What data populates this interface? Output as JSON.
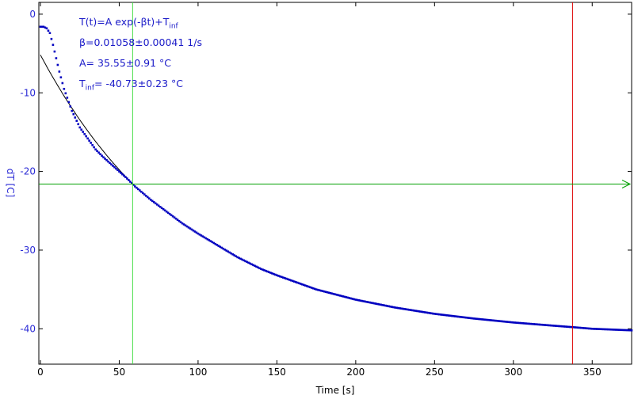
{
  "chart_data": {
    "type": "scatter",
    "xlabel": "Time [s]",
    "ylabel": "dT [C]",
    "xlim": [
      -1,
      375
    ],
    "ylim": [
      -44.5,
      1.5
    ],
    "xticks": [
      0,
      50,
      100,
      150,
      200,
      250,
      300,
      350
    ],
    "yticks": [
      0,
      -10,
      -20,
      -30,
      -40
    ],
    "series": [
      {
        "kind": "measured",
        "color": "#0000c0",
        "x": [
          0,
          2,
          4,
          6,
          8,
          10,
          12,
          15,
          20,
          25,
          30,
          35,
          40,
          45,
          50,
          55,
          58,
          60,
          70,
          80,
          90,
          100,
          110,
          125,
          140,
          150,
          175,
          200,
          225,
          250,
          275,
          300,
          325,
          338,
          350,
          375
        ],
        "y": [
          -1.6,
          -1.6,
          -1.8,
          -2.4,
          -3.9,
          -5.6,
          -7.3,
          -9.5,
          -12.3,
          -14.4,
          -15.8,
          -17.2,
          -18.2,
          -19.1,
          -20.0,
          -20.9,
          -21.5,
          -21.9,
          -23.6,
          -25.1,
          -26.6,
          -27.9,
          -29.1,
          -30.9,
          -32.4,
          -33.2,
          -35.0,
          -36.3,
          -37.3,
          -38.1,
          -38.7,
          -39.2,
          -39.6,
          -39.8,
          -40.0,
          -40.2
        ]
      },
      {
        "kind": "fit",
        "color": "#000000",
        "model": "T(t)=A exp(-βt)+T_inf",
        "params": {
          "A": 35.55,
          "beta": 0.01058,
          "T_inf": -40.73
        },
        "x_range": [
          0,
          58
        ]
      }
    ],
    "markers": {
      "vline_green_x": 58.5,
      "vline_red_x": 337.5,
      "hline_green_y": -21.6,
      "green": "#00a000",
      "lime": "#44dd44",
      "red": "#dd0000"
    },
    "annotations": {
      "line1_main": "T(t)=A exp(-βt)+T",
      "line1_sub": "inf",
      "line2": "β=0.01058±0.00041 1/s",
      "line3": "A= 35.55±0.91 °C",
      "line4_pre": "T",
      "line4_sub": "inf",
      "line4_post": "= -40.73±0.23 °C"
    }
  }
}
